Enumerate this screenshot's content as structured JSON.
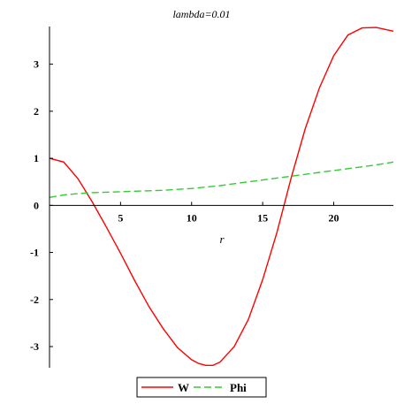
{
  "chart_data": {
    "type": "line",
    "title": "lambda=0.01",
    "xlabel": "r",
    "ylabel": "",
    "xlim": [
      0,
      24.2
    ],
    "ylim": [
      -3.45,
      3.8
    ],
    "x_ticks": [
      5,
      10,
      15,
      20
    ],
    "y_ticks": [
      -3,
      -2,
      -1,
      0,
      1,
      2,
      3
    ],
    "grid": false,
    "legend_position": "bottom",
    "series": [
      {
        "name": "W",
        "color": "#ff0000",
        "dash": "solid",
        "x": [
          0,
          1,
          2,
          3,
          4,
          5,
          6,
          7,
          8,
          9,
          10,
          10.5,
          11,
          11.5,
          12,
          13,
          14,
          15,
          16,
          17,
          18,
          19,
          20,
          21,
          22,
          23,
          24.2
        ],
        "y": [
          1.0,
          0.92,
          0.57,
          0.08,
          -0.46,
          -1.02,
          -1.6,
          -2.15,
          -2.62,
          -3.02,
          -3.28,
          -3.36,
          -3.4,
          -3.4,
          -3.33,
          -3.0,
          -2.42,
          -1.58,
          -0.58,
          0.58,
          1.63,
          2.5,
          3.18,
          3.62,
          3.77,
          3.78,
          3.7
        ]
      },
      {
        "name": "Phi",
        "color": "#33cc33",
        "dash": "dashed",
        "x": [
          0,
          1,
          2,
          3,
          4,
          5,
          6,
          7,
          8,
          9,
          10,
          11,
          12,
          13,
          14,
          15,
          16,
          17,
          18,
          19,
          20,
          21,
          22,
          23,
          24.2
        ],
        "y": [
          0.17,
          0.22,
          0.25,
          0.27,
          0.28,
          0.29,
          0.3,
          0.31,
          0.32,
          0.34,
          0.36,
          0.39,
          0.42,
          0.46,
          0.5,
          0.54,
          0.58,
          0.62,
          0.66,
          0.7,
          0.74,
          0.78,
          0.82,
          0.86,
          0.92
        ]
      }
    ]
  }
}
